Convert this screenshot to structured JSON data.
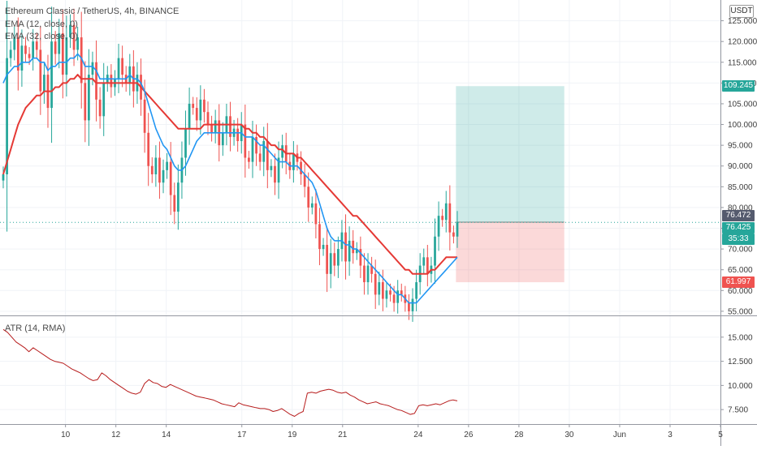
{
  "chart_data": [
    {
      "type": "candlestick",
      "title": "Ethereum Classic / TetherUS, 4h, BINANCE",
      "currency": "USDT",
      "x_ticks": [
        {
          "label": "10",
          "day": 10
        },
        {
          "label": "12",
          "day": 12
        },
        {
          "label": "14",
          "day": 14
        },
        {
          "label": "17",
          "day": 17
        },
        {
          "label": "19",
          "day": 19
        },
        {
          "label": "21",
          "day": 21
        },
        {
          "label": "24",
          "day": 24
        },
        {
          "label": "26",
          "day": 26
        },
        {
          "label": "28",
          "day": 28
        },
        {
          "label": "30",
          "day": 30
        },
        {
          "label": "Jun",
          "day": 32
        },
        {
          "label": "3",
          "day": 34
        },
        {
          "label": "5",
          "day": 36
        }
      ],
      "x_range": [
        7.4,
        36
      ],
      "y_ticks": [
        "55.000",
        "60.000",
        "65.000",
        "70.000",
        "75.000",
        "80.000",
        "85.000",
        "90.000",
        "95.000",
        "100.000",
        "105.000",
        "110.000",
        "115.000",
        "120.000",
        "125.000"
      ],
      "y_range": [
        54,
        130
      ],
      "close": [
        88,
        116,
        118,
        121,
        113,
        119,
        117,
        116,
        120,
        118,
        108,
        112,
        104,
        120,
        117,
        122,
        112,
        121,
        124,
        118,
        121,
        110,
        101,
        112,
        115,
        106,
        102,
        110,
        112,
        109,
        111,
        116,
        112,
        110,
        114,
        108,
        112,
        106,
        98,
        90,
        88,
        92,
        86,
        89,
        91,
        83,
        79,
        86,
        92,
        99,
        105,
        104,
        101,
        106,
        103,
        100,
        98,
        101,
        95,
        98,
        102,
        97,
        99,
        96,
        100,
        92,
        91,
        97,
        93,
        91,
        96,
        89,
        90,
        86,
        92,
        95,
        91,
        89,
        93,
        91,
        88,
        85,
        80,
        81,
        76,
        70,
        71,
        64,
        69,
        66,
        70,
        74,
        67,
        72,
        69,
        70,
        66,
        62,
        66,
        64,
        59,
        62,
        58,
        60,
        59,
        57,
        60,
        59,
        57,
        55,
        58,
        62,
        66,
        68,
        64,
        66,
        73,
        78,
        77,
        81,
        74,
        73,
        76.425
      ],
      "ema_12": [
        110,
        112,
        113,
        114,
        114,
        115,
        115,
        115,
        116,
        116,
        115,
        115,
        113,
        114,
        114,
        115,
        115,
        115,
        116,
        116,
        117,
        116,
        114,
        114,
        114,
        113,
        111,
        111,
        111,
        111,
        111,
        111,
        111,
        111,
        112,
        111,
        111,
        110,
        108,
        105,
        102,
        99,
        97,
        95,
        94,
        92,
        90,
        89,
        89,
        90,
        92,
        94,
        96,
        97,
        98,
        98,
        98,
        98,
        98,
        98,
        98,
        98,
        98,
        98,
        98,
        97,
        97,
        97,
        96,
        95,
        95,
        94,
        93,
        92,
        91,
        91,
        91,
        90,
        90,
        90,
        89,
        88,
        87,
        86,
        84,
        81,
        78,
        75,
        73,
        72,
        72,
        72,
        71,
        71,
        70,
        70,
        69,
        68,
        67,
        66,
        65,
        64,
        63,
        62,
        61,
        60,
        59,
        59,
        58,
        57,
        57,
        57,
        58,
        59,
        60,
        61,
        62,
        63,
        64,
        65,
        66,
        67,
        68
      ],
      "ema_32": [
        88,
        91,
        94,
        97,
        100,
        102,
        104,
        105,
        106,
        107,
        107,
        108,
        108,
        108,
        109,
        109,
        110,
        110,
        111,
        111,
        112,
        111,
        111,
        111,
        111,
        110,
        110,
        110,
        110,
        110,
        110,
        110,
        110,
        110,
        110,
        110,
        110,
        109,
        108,
        107,
        106,
        105,
        104,
        103,
        102,
        101,
        100,
        99,
        99,
        99,
        99,
        99,
        99,
        99,
        100,
        100,
        100,
        100,
        100,
        100,
        100,
        100,
        100,
        100,
        100,
        99,
        99,
        98,
        98,
        97,
        97,
        96,
        95,
        95,
        94,
        94,
        93,
        93,
        93,
        92,
        92,
        91,
        90,
        89,
        88,
        87,
        86,
        85,
        84,
        83,
        82,
        81,
        80,
        79,
        78,
        78,
        77,
        76,
        75,
        74,
        73,
        72,
        71,
        70,
        69,
        68,
        67,
        66,
        65,
        65,
        64,
        64,
        64,
        64,
        64,
        65,
        65,
        66,
        67,
        68,
        68,
        68,
        68
      ],
      "ema_12_label": "EMA (12, close, 0)",
      "ema_32_label": "EMA (32, close, 0)",
      "position": {
        "entry": 76.472,
        "target": 109.245,
        "stop": 61.997,
        "start_day": 25.5,
        "end_day": 29.8
      },
      "badges": {
        "target": "109.245",
        "entry": "76.472",
        "last": "76.425",
        "countdown": "35:33",
        "stop": "61.997"
      },
      "colors": {
        "up": "#26a69a",
        "down": "#ef5350",
        "ema_12": "#2196f3",
        "ema_32": "#e53935",
        "target_zone": "rgba(38,166,154,0.22)",
        "stop_zone": "rgba(239,83,80,0.22)"
      }
    },
    {
      "type": "line",
      "name": "ATR (14, RMA)",
      "y_ticks": [
        "7.500",
        "10.000",
        "12.500",
        "15.000"
      ],
      "y_range": [
        6,
        17
      ],
      "values": [
        15.8,
        15.5,
        15.0,
        14.5,
        14.2,
        13.9,
        13.5,
        13.9,
        13.6,
        13.3,
        13.0,
        12.7,
        12.5,
        12.4,
        12.3,
        12.0,
        11.7,
        11.5,
        11.3,
        11.0,
        10.7,
        10.5,
        10.6,
        11.3,
        11.0,
        10.6,
        10.3,
        10.0,
        9.7,
        9.4,
        9.2,
        9.1,
        9.3,
        10.2,
        10.6,
        10.3,
        10.2,
        9.9,
        9.8,
        10.1,
        9.9,
        9.7,
        9.5,
        9.3,
        9.1,
        8.9,
        8.8,
        8.7,
        8.6,
        8.5,
        8.3,
        8.1,
        8.0,
        7.9,
        7.8,
        8.2,
        8.0,
        7.9,
        7.8,
        7.7,
        7.6,
        7.6,
        7.5,
        7.3,
        7.4,
        7.6,
        7.3,
        7.0,
        6.8,
        7.1,
        7.3,
        9.2,
        9.3,
        9.2,
        9.4,
        9.5,
        9.6,
        9.5,
        9.3,
        9.2,
        9.3,
        9.0,
        8.8,
        8.5,
        8.3,
        8.1,
        8.2,
        8.3,
        8.1,
        8.0,
        7.9,
        7.7,
        7.5,
        7.4,
        7.2,
        7.0,
        7.1,
        7.9,
        8.0,
        7.9,
        8.0,
        8.1,
        8.0,
        8.2,
        8.4,
        8.5,
        8.4
      ],
      "line_color": "#b71c1c"
    }
  ]
}
